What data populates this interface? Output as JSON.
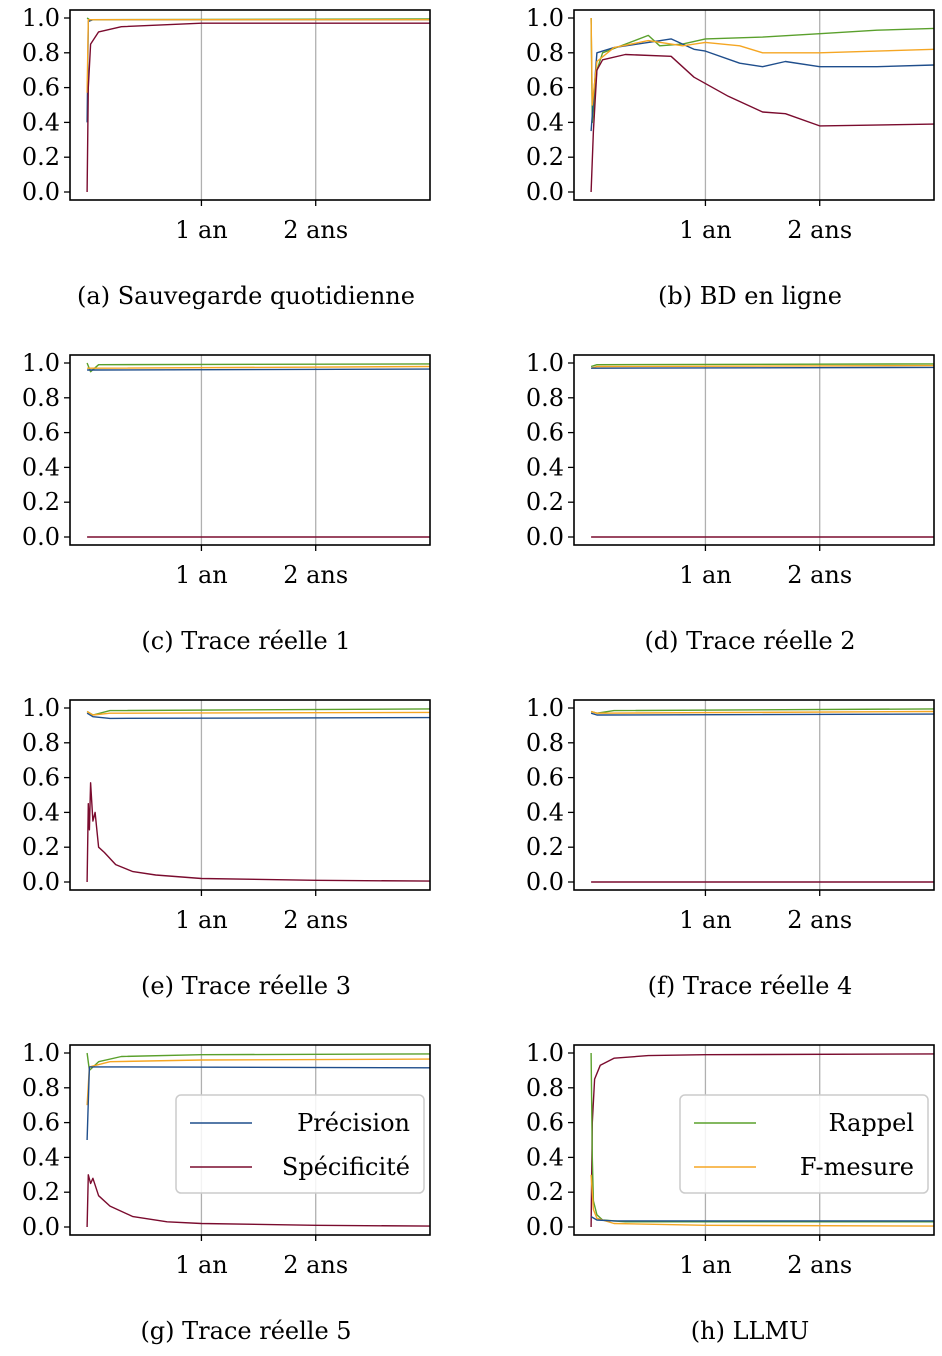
{
  "colors": {
    "precision": "#1f4e8c",
    "recall": "#5aa02c",
    "specificity": "#7a0b2e",
    "fmeasure": "#f5a623",
    "grid": "#b0b0b0"
  },
  "chart_data": [
    {
      "type": "line",
      "caption": "(a) Sauvegarde quotidienne",
      "xticks": [
        {
          "value": 1,
          "label": "1 an"
        },
        {
          "value": 2,
          "label": "2 ans"
        }
      ],
      "yticks": [
        "0.0",
        "0.2",
        "0.4",
        "0.6",
        "0.8",
        "1.0"
      ],
      "xlim": [
        -0.15,
        3.0
      ],
      "ylim": [
        0,
        1
      ],
      "grid": "vertical at x ticks",
      "series": [
        {
          "key": "precision",
          "values": [
            [
              0.0,
              0.4
            ],
            [
              0.01,
              0.98
            ],
            [
              0.05,
              0.99
            ],
            [
              3.0,
              0.99
            ]
          ]
        },
        {
          "key": "recall",
          "values": [
            [
              0.0,
              1.0
            ],
            [
              0.02,
              0.99
            ],
            [
              3.0,
              0.995
            ]
          ]
        },
        {
          "key": "fmeasure",
          "values": [
            [
              0.0,
              0.57
            ],
            [
              0.01,
              0.99
            ],
            [
              3.0,
              0.99
            ]
          ]
        },
        {
          "key": "specificity",
          "values": [
            [
              0.0,
              0.0
            ],
            [
              0.01,
              0.6
            ],
            [
              0.03,
              0.85
            ],
            [
              0.1,
              0.92
            ],
            [
              0.3,
              0.95
            ],
            [
              1.0,
              0.97
            ],
            [
              3.0,
              0.97
            ]
          ]
        }
      ]
    },
    {
      "type": "line",
      "caption": "(b) BD en ligne",
      "xticks": [
        {
          "value": 1,
          "label": "1 an"
        },
        {
          "value": 2,
          "label": "2 ans"
        }
      ],
      "yticks": [
        "0.0",
        "0.2",
        "0.4",
        "0.6",
        "0.8",
        "1.0"
      ],
      "xlim": [
        -0.15,
        3.0
      ],
      "ylim": [
        0,
        1
      ],
      "grid": "vertical at x ticks",
      "series": [
        {
          "key": "recall",
          "values": [
            [
              0.0,
              1.0
            ],
            [
              0.01,
              0.4
            ],
            [
              0.05,
              0.7
            ],
            [
              0.1,
              0.8
            ],
            [
              0.3,
              0.85
            ],
            [
              0.5,
              0.9
            ],
            [
              0.6,
              0.84
            ],
            [
              0.8,
              0.85
            ],
            [
              1.0,
              0.88
            ],
            [
              1.5,
              0.89
            ],
            [
              2.0,
              0.91
            ],
            [
              2.5,
              0.93
            ],
            [
              3.0,
              0.94
            ]
          ]
        },
        {
          "key": "precision",
          "values": [
            [
              0.0,
              0.35
            ],
            [
              0.05,
              0.8
            ],
            [
              0.2,
              0.83
            ],
            [
              0.5,
              0.86
            ],
            [
              0.7,
              0.88
            ],
            [
              0.9,
              0.82
            ],
            [
              1.0,
              0.81
            ],
            [
              1.3,
              0.74
            ],
            [
              1.5,
              0.72
            ],
            [
              1.7,
              0.75
            ],
            [
              2.0,
              0.72
            ],
            [
              2.5,
              0.72
            ],
            [
              3.0,
              0.73
            ]
          ]
        },
        {
          "key": "fmeasure",
          "values": [
            [
              0.0,
              1.0
            ],
            [
              0.01,
              0.5
            ],
            [
              0.05,
              0.75
            ],
            [
              0.2,
              0.83
            ],
            [
              0.5,
              0.87
            ],
            [
              0.8,
              0.84
            ],
            [
              1.0,
              0.86
            ],
            [
              1.3,
              0.84
            ],
            [
              1.5,
              0.8
            ],
            [
              2.0,
              0.8
            ],
            [
              2.5,
              0.81
            ],
            [
              3.0,
              0.82
            ]
          ]
        },
        {
          "key": "specificity",
          "values": [
            [
              0.0,
              0.0
            ],
            [
              0.02,
              0.35
            ],
            [
              0.05,
              0.7
            ],
            [
              0.1,
              0.76
            ],
            [
              0.3,
              0.79
            ],
            [
              0.7,
              0.78
            ],
            [
              0.9,
              0.66
            ],
            [
              1.2,
              0.55
            ],
            [
              1.5,
              0.46
            ],
            [
              1.7,
              0.45
            ],
            [
              2.0,
              0.38
            ],
            [
              3.0,
              0.39
            ]
          ]
        }
      ]
    },
    {
      "type": "line",
      "caption": "(c) Trace réelle 1",
      "xticks": [
        {
          "value": 1,
          "label": "1 an"
        },
        {
          "value": 2,
          "label": "2 ans"
        }
      ],
      "yticks": [
        "0.0",
        "0.2",
        "0.4",
        "0.6",
        "0.8",
        "1.0"
      ],
      "xlim": [
        -0.15,
        3.0
      ],
      "ylim": [
        0,
        1
      ],
      "grid": "vertical at x ticks",
      "series": [
        {
          "key": "recall",
          "values": [
            [
              0.0,
              1.0
            ],
            [
              0.03,
              0.95
            ],
            [
              0.1,
              0.99
            ],
            [
              3.0,
              0.995
            ]
          ]
        },
        {
          "key": "fmeasure",
          "values": [
            [
              0.0,
              0.97
            ],
            [
              0.05,
              0.97
            ],
            [
              3.0,
              0.98
            ]
          ]
        },
        {
          "key": "precision",
          "values": [
            [
              0.0,
              0.96
            ],
            [
              0.05,
              0.96
            ],
            [
              3.0,
              0.965
            ]
          ]
        },
        {
          "key": "specificity",
          "values": [
            [
              0.0,
              0.0
            ],
            [
              3.0,
              0.0
            ]
          ]
        }
      ]
    },
    {
      "type": "line",
      "caption": "(d) Trace réelle 2",
      "xticks": [
        {
          "value": 1,
          "label": "1 an"
        },
        {
          "value": 2,
          "label": "2 ans"
        }
      ],
      "yticks": [
        "0.0",
        "0.2",
        "0.4",
        "0.6",
        "0.8",
        "1.0"
      ],
      "xlim": [
        -0.15,
        3.0
      ],
      "ylim": [
        0,
        1
      ],
      "grid": "vertical at x ticks",
      "series": [
        {
          "key": "recall",
          "values": [
            [
              0.0,
              0.98
            ],
            [
              0.05,
              0.99
            ],
            [
              3.0,
              0.995
            ]
          ]
        },
        {
          "key": "fmeasure",
          "values": [
            [
              0.0,
              0.97
            ],
            [
              0.05,
              0.98
            ],
            [
              3.0,
              0.985
            ]
          ]
        },
        {
          "key": "precision",
          "values": [
            [
              0.0,
              0.97
            ],
            [
              0.05,
              0.97
            ],
            [
              3.0,
              0.975
            ]
          ]
        },
        {
          "key": "specificity",
          "values": [
            [
              0.0,
              0.0
            ],
            [
              3.0,
              0.0
            ]
          ]
        }
      ]
    },
    {
      "type": "line",
      "caption": "(e) Trace réelle 3",
      "xticks": [
        {
          "value": 1,
          "label": "1 an"
        },
        {
          "value": 2,
          "label": "2 ans"
        }
      ],
      "yticks": [
        "0.0",
        "0.2",
        "0.4",
        "0.6",
        "0.8",
        "1.0"
      ],
      "xlim": [
        -0.15,
        3.0
      ],
      "ylim": [
        0,
        1
      ],
      "grid": "vertical at x ticks",
      "series": [
        {
          "key": "recall",
          "values": [
            [
              0.0,
              0.98
            ],
            [
              0.05,
              0.96
            ],
            [
              0.2,
              0.985
            ],
            [
              3.0,
              0.995
            ]
          ]
        },
        {
          "key": "fmeasure",
          "values": [
            [
              0.0,
              0.98
            ],
            [
              0.05,
              0.96
            ],
            [
              0.2,
              0.97
            ],
            [
              3.0,
              0.975
            ]
          ]
        },
        {
          "key": "precision",
          "values": [
            [
              0.0,
              0.97
            ],
            [
              0.05,
              0.95
            ],
            [
              0.2,
              0.94
            ],
            [
              3.0,
              0.945
            ]
          ]
        },
        {
          "key": "specificity",
          "values": [
            [
              0.0,
              0.0
            ],
            [
              0.01,
              0.45
            ],
            [
              0.02,
              0.3
            ],
            [
              0.03,
              0.57
            ],
            [
              0.05,
              0.35
            ],
            [
              0.07,
              0.4
            ],
            [
              0.1,
              0.2
            ],
            [
              0.15,
              0.17
            ],
            [
              0.25,
              0.1
            ],
            [
              0.4,
              0.06
            ],
            [
              0.6,
              0.04
            ],
            [
              1.0,
              0.02
            ],
            [
              2.0,
              0.01
            ],
            [
              3.0,
              0.005
            ]
          ]
        }
      ]
    },
    {
      "type": "line",
      "caption": "(f) Trace réelle 4",
      "xticks": [
        {
          "value": 1,
          "label": "1 an"
        },
        {
          "value": 2,
          "label": "2 ans"
        }
      ],
      "yticks": [
        "0.0",
        "0.2",
        "0.4",
        "0.6",
        "0.8",
        "1.0"
      ],
      "xlim": [
        -0.15,
        3.0
      ],
      "ylim": [
        0,
        1
      ],
      "grid": "vertical at x ticks",
      "series": [
        {
          "key": "recall",
          "values": [
            [
              0.0,
              0.98
            ],
            [
              0.05,
              0.97
            ],
            [
              0.2,
              0.985
            ],
            [
              3.0,
              0.995
            ]
          ]
        },
        {
          "key": "fmeasure",
          "values": [
            [
              0.0,
              0.98
            ],
            [
              0.05,
              0.97
            ],
            [
              3.0,
              0.98
            ]
          ]
        },
        {
          "key": "precision",
          "values": [
            [
              0.0,
              0.97
            ],
            [
              0.05,
              0.96
            ],
            [
              3.0,
              0.965
            ]
          ]
        },
        {
          "key": "specificity",
          "values": [
            [
              0.0,
              0.0
            ],
            [
              3.0,
              0.0
            ]
          ]
        }
      ]
    },
    {
      "type": "line",
      "caption": "(g) Trace réelle 5",
      "xticks": [
        {
          "value": 1,
          "label": "1 an"
        },
        {
          "value": 2,
          "label": "2 ans"
        }
      ],
      "yticks": [
        "0.0",
        "0.2",
        "0.4",
        "0.6",
        "0.8",
        "1.0"
      ],
      "xlim": [
        -0.15,
        3.0
      ],
      "ylim": [
        0,
        1
      ],
      "grid": "vertical at x ticks",
      "legend": {
        "placement": "center-right",
        "entries": [
          {
            "key": "precision",
            "label": "Précision"
          },
          {
            "key": "specificity",
            "label": "Spécificité"
          }
        ]
      },
      "series": [
        {
          "key": "recall",
          "values": [
            [
              0.0,
              1.0
            ],
            [
              0.02,
              0.9
            ],
            [
              0.1,
              0.95
            ],
            [
              0.3,
              0.98
            ],
            [
              1.0,
              0.99
            ],
            [
              3.0,
              0.995
            ]
          ]
        },
        {
          "key": "fmeasure",
          "values": [
            [
              0.0,
              0.7
            ],
            [
              0.02,
              0.92
            ],
            [
              0.2,
              0.95
            ],
            [
              1.0,
              0.96
            ],
            [
              3.0,
              0.965
            ]
          ]
        },
        {
          "key": "precision",
          "values": [
            [
              0.0,
              0.5
            ],
            [
              0.02,
              0.92
            ],
            [
              0.1,
              0.92
            ],
            [
              3.0,
              0.915
            ]
          ]
        },
        {
          "key": "specificity",
          "values": [
            [
              0.0,
              0.0
            ],
            [
              0.01,
              0.3
            ],
            [
              0.03,
              0.25
            ],
            [
              0.05,
              0.28
            ],
            [
              0.1,
              0.18
            ],
            [
              0.2,
              0.12
            ],
            [
              0.4,
              0.06
            ],
            [
              0.7,
              0.03
            ],
            [
              1.0,
              0.02
            ],
            [
              2.0,
              0.01
            ],
            [
              3.0,
              0.005
            ]
          ]
        }
      ]
    },
    {
      "type": "line",
      "caption": "(h) LLMU",
      "xticks": [
        {
          "value": 1,
          "label": "1 an"
        },
        {
          "value": 2,
          "label": "2 ans"
        }
      ],
      "yticks": [
        "0.0",
        "0.2",
        "0.4",
        "0.6",
        "0.8",
        "1.0"
      ],
      "xlim": [
        -0.15,
        3.0
      ],
      "ylim": [
        0,
        1
      ],
      "grid": "vertical at x ticks",
      "legend": {
        "placement": "center-right",
        "entries": [
          {
            "key": "recall",
            "label": "Rappel"
          },
          {
            "key": "fmeasure",
            "label": "F-mesure"
          }
        ]
      },
      "series": [
        {
          "key": "specificity",
          "values": [
            [
              0.0,
              0.0
            ],
            [
              0.01,
              0.6
            ],
            [
              0.03,
              0.85
            ],
            [
              0.08,
              0.93
            ],
            [
              0.2,
              0.97
            ],
            [
              0.5,
              0.985
            ],
            [
              1.0,
              0.99
            ],
            [
              3.0,
              0.995
            ]
          ]
        },
        {
          "key": "recall",
          "values": [
            [
              0.0,
              1.0
            ],
            [
              0.01,
              0.4
            ],
            [
              0.02,
              0.15
            ],
            [
              0.05,
              0.07
            ],
            [
              0.1,
              0.04
            ],
            [
              0.3,
              0.03
            ],
            [
              1.0,
              0.03
            ],
            [
              3.0,
              0.03
            ]
          ]
        },
        {
          "key": "fmeasure",
          "values": [
            [
              0.0,
              0.3
            ],
            [
              0.02,
              0.1
            ],
            [
              0.05,
              0.05
            ],
            [
              0.2,
              0.02
            ],
            [
              1.0,
              0.01
            ],
            [
              3.0,
              0.005
            ]
          ]
        },
        {
          "key": "precision",
          "values": [
            [
              0.0,
              0.06
            ],
            [
              0.05,
              0.04
            ],
            [
              0.2,
              0.035
            ],
            [
              3.0,
              0.035
            ]
          ]
        }
      ]
    }
  ]
}
